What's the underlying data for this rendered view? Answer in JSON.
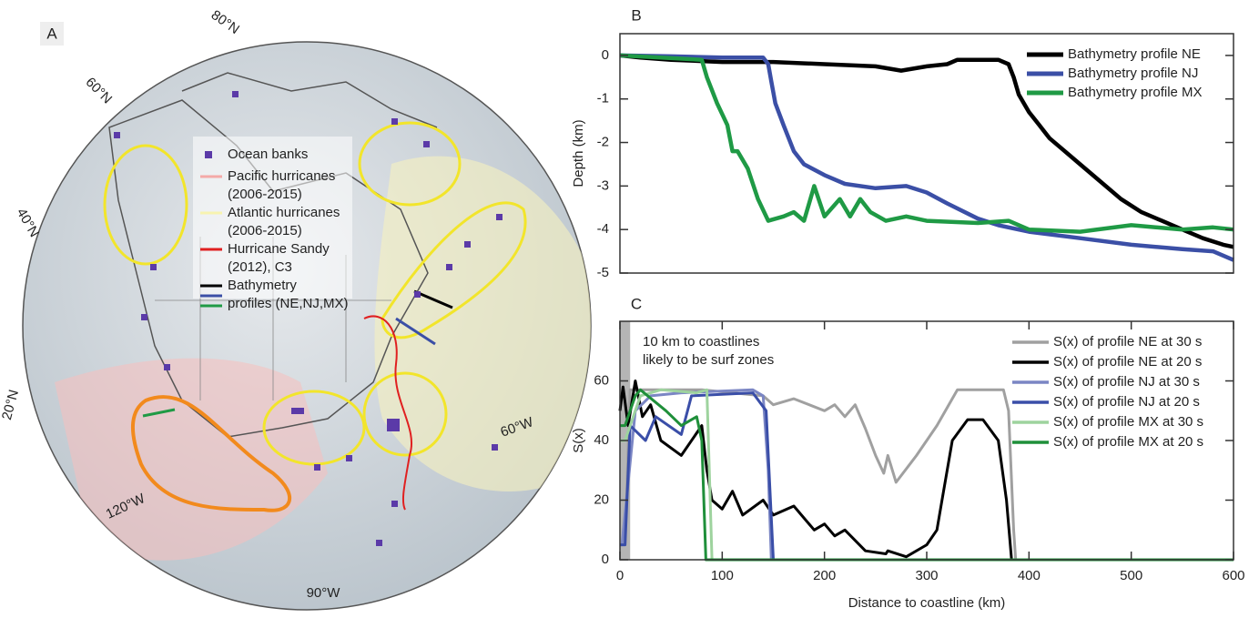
{
  "chart_data": [
    {
      "type": "map",
      "panel": "A",
      "lat_labels": [
        "80°N",
        "60°N",
        "40°N",
        "20°N"
      ],
      "lon_labels": [
        "120°W",
        "90°W",
        "60°W"
      ],
      "legend": [
        {
          "name": [
            "Ocean banks"
          ],
          "colors": [
            "#5b3aa8"
          ],
          "marker": "square"
        },
        {
          "name": [
            "Pacific hurricanes",
            "(2006-2015)"
          ],
          "colors": [
            "#f4aaa8"
          ],
          "marker": "line"
        },
        {
          "name": [
            "Atlantic hurricanes",
            "(2006-2015)"
          ],
          "colors": [
            "#f7f3b0"
          ],
          "marker": "line"
        },
        {
          "name": [
            "Hurricane Sandy",
            "(2012), C3"
          ],
          "colors": [
            "#e02020"
          ],
          "marker": "line"
        },
        {
          "name": [
            "Bathymetry",
            "profiles (NE,NJ,MX)"
          ],
          "colors": [
            "#000000",
            "#3b4fa6",
            "#1f9a45"
          ],
          "marker": "line"
        }
      ]
    },
    {
      "type": "line",
      "panel": "B",
      "ylabel": "Depth (km)",
      "xlim": [
        0,
        600
      ],
      "ylim": [
        -5,
        0.5
      ],
      "yticks": [
        -5,
        -4,
        -3,
        -2,
        -1,
        0
      ],
      "legend": "upper right",
      "series": [
        {
          "name": "Bathymetry profile NE",
          "color": "#000000",
          "x": [
            0,
            20,
            50,
            100,
            150,
            200,
            250,
            275,
            300,
            320,
            330,
            370,
            380,
            385,
            390,
            395,
            400,
            410,
            420,
            430,
            450,
            470,
            490,
            510,
            530,
            550,
            570,
            590,
            600
          ],
          "values": [
            0,
            -0.05,
            -0.1,
            -0.15,
            -0.15,
            -0.2,
            -0.25,
            -0.35,
            -0.25,
            -0.2,
            -0.1,
            -0.1,
            -0.2,
            -0.5,
            -0.9,
            -1.1,
            -1.3,
            -1.6,
            -1.9,
            -2.1,
            -2.5,
            -2.9,
            -3.3,
            -3.6,
            -3.8,
            -4.0,
            -4.2,
            -4.35,
            -4.4
          ]
        },
        {
          "name": "Bathymetry profile NJ",
          "color": "#3b4fa6",
          "x": [
            0,
            50,
            100,
            140,
            145,
            148,
            152,
            160,
            170,
            180,
            200,
            220,
            250,
            280,
            300,
            320,
            350,
            370,
            400,
            450,
            500,
            550,
            580,
            600
          ],
          "values": [
            0,
            -0.02,
            -0.05,
            -0.05,
            -0.2,
            -0.6,
            -1.1,
            -1.6,
            -2.2,
            -2.5,
            -2.75,
            -2.95,
            -3.05,
            -3.0,
            -3.15,
            -3.4,
            -3.75,
            -3.9,
            -4.05,
            -4.2,
            -4.35,
            -4.45,
            -4.5,
            -4.7
          ]
        },
        {
          "name": "Bathymetry profile MX",
          "color": "#1f9a45",
          "x": [
            0,
            40,
            80,
            85,
            95,
            105,
            110,
            115,
            125,
            135,
            145,
            160,
            170,
            180,
            190,
            200,
            215,
            225,
            235,
            245,
            260,
            280,
            300,
            350,
            380,
            400,
            450,
            500,
            550,
            580,
            600
          ],
          "values": [
            0,
            -0.05,
            -0.1,
            -0.5,
            -1.1,
            -1.6,
            -2.2,
            -2.2,
            -2.6,
            -3.3,
            -3.8,
            -3.7,
            -3.6,
            -3.8,
            -3.0,
            -3.7,
            -3.3,
            -3.7,
            -3.3,
            -3.6,
            -3.8,
            -3.7,
            -3.8,
            -3.85,
            -3.8,
            -4.0,
            -4.05,
            -3.9,
            -4.0,
            -3.95,
            -4.0
          ]
        }
      ]
    },
    {
      "type": "line",
      "panel": "C",
      "xlabel": "Distance to coastline (km)",
      "ylabel": "S(x)",
      "xlim": [
        0,
        600
      ],
      "xticks": [
        0,
        100,
        200,
        300,
        400,
        500,
        600
      ],
      "ylim": [
        0,
        80
      ],
      "yticks": [
        0,
        20,
        40,
        60
      ],
      "legend": "upper right",
      "annotation": [
        "10 km to coastlines",
        "likely to be surf zones"
      ],
      "shade_xlim": [
        0,
        10
      ],
      "series": [
        {
          "name": "S(x) of profile NE at 30 s",
          "color": "#a0a0a0",
          "x": [
            0,
            5,
            10,
            80,
            140,
            150,
            170,
            200,
            210,
            220,
            230,
            240,
            250,
            258,
            262,
            270,
            290,
            310,
            330,
            375,
            380,
            385,
            387,
            600
          ],
          "values": [
            5,
            5,
            57,
            57,
            55,
            52,
            54,
            50,
            52,
            48,
            52,
            44,
            35,
            29,
            35,
            26,
            35,
            45,
            57,
            57,
            50,
            10,
            0,
            0
          ]
        },
        {
          "name": "S(x) of profile NE at 20 s",
          "color": "#000000",
          "x": [
            0,
            3,
            8,
            15,
            22,
            30,
            40,
            60,
            80,
            85,
            90,
            100,
            110,
            120,
            140,
            150,
            170,
            190,
            200,
            210,
            220,
            240,
            260,
            262,
            280,
            300,
            310,
            315,
            325,
            340,
            355,
            370,
            378,
            383,
            600
          ],
          "values": [
            50,
            58,
            45,
            60,
            48,
            52,
            40,
            35,
            45,
            30,
            20,
            17,
            23,
            15,
            20,
            15,
            18,
            10,
            12,
            8,
            10,
            3,
            2,
            3,
            1,
            5,
            10,
            20,
            40,
            47,
            47,
            40,
            20,
            0,
            0
          ]
        },
        {
          "name": "S(x) of profile NJ at 30 s",
          "color": "#7b86c4",
          "x": [
            0,
            2,
            15,
            30,
            60,
            130,
            140,
            145,
            148,
            600
          ],
          "values": [
            5,
            5,
            50,
            55,
            56,
            57,
            55,
            30,
            0,
            0
          ]
        },
        {
          "name": "S(x) of profile NJ at 20 s",
          "color": "#3a4ea8",
          "x": [
            0,
            5,
            10,
            25,
            35,
            60,
            70,
            130,
            143,
            150,
            600
          ],
          "values": [
            5,
            5,
            45,
            40,
            48,
            42,
            55,
            56,
            50,
            0,
            0
          ]
        },
        {
          "name": "S(x) of profile MX at 30 s",
          "color": "#9ed39e",
          "x": [
            0,
            5,
            20,
            40,
            75,
            85,
            90,
            600
          ],
          "values": [
            40,
            40,
            55,
            57,
            56,
            57,
            0,
            0
          ]
        },
        {
          "name": "S(x) of profile MX at 20 s",
          "color": "#1f8f3a",
          "x": [
            0,
            5,
            15,
            20,
            45,
            60,
            75,
            80,
            84,
            600
          ],
          "values": [
            45,
            45,
            55,
            57,
            50,
            45,
            48,
            40,
            0,
            0
          ]
        }
      ]
    }
  ]
}
